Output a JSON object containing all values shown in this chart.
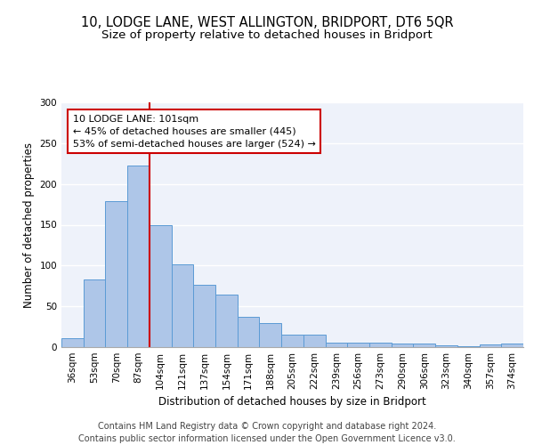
{
  "title1": "10, LODGE LANE, WEST ALLINGTON, BRIDPORT, DT6 5QR",
  "title2": "Size of property relative to detached houses in Bridport",
  "xlabel": "Distribution of detached houses by size in Bridport",
  "ylabel": "Number of detached properties",
  "footer1": "Contains HM Land Registry data © Crown copyright and database right 2024.",
  "footer2": "Contains public sector information licensed under the Open Government Licence v3.0.",
  "categories": [
    "36sqm",
    "53sqm",
    "70sqm",
    "87sqm",
    "104sqm",
    "121sqm",
    "137sqm",
    "154sqm",
    "171sqm",
    "188sqm",
    "205sqm",
    "222sqm",
    "239sqm",
    "256sqm",
    "273sqm",
    "290sqm",
    "306sqm",
    "323sqm",
    "340sqm",
    "357sqm",
    "374sqm"
  ],
  "values": [
    11,
    83,
    179,
    222,
    149,
    102,
    76,
    64,
    37,
    30,
    15,
    15,
    6,
    5,
    5,
    4,
    4,
    2,
    1,
    3,
    4
  ],
  "bar_color": "#aec6e8",
  "bar_edge_color": "#5b9bd5",
  "vline_color": "#cc0000",
  "annotation_text": "10 LODGE LANE: 101sqm\n← 45% of detached houses are smaller (445)\n53% of semi-detached houses are larger (524) →",
  "annotation_box_color": "white",
  "annotation_box_edge_color": "#cc0000",
  "ylim": [
    0,
    300
  ],
  "yticks": [
    0,
    50,
    100,
    150,
    200,
    250,
    300
  ],
  "background_color": "#eef2fa",
  "grid_color": "white",
  "title1_fontsize": 10.5,
  "title2_fontsize": 9.5,
  "xlabel_fontsize": 8.5,
  "ylabel_fontsize": 8.5,
  "tick_fontsize": 7.5,
  "annotation_fontsize": 8,
  "footer_fontsize": 7
}
